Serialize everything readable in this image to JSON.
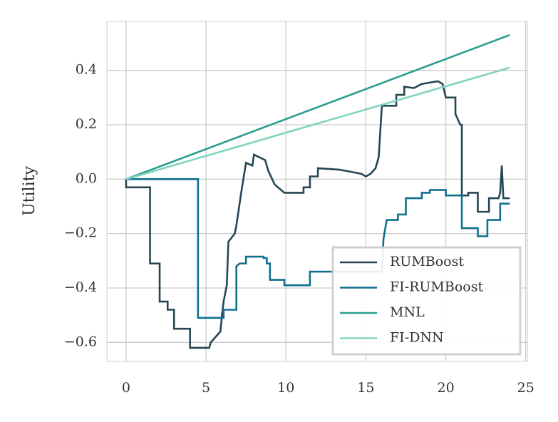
{
  "chart_data": {
    "type": "line",
    "y_label": "Utility",
    "xlim": [
      -1.2,
      25.1
    ],
    "ylim": [
      -0.67,
      0.58
    ],
    "xticks": [
      0,
      5,
      10,
      15,
      20,
      25
    ],
    "yticks": [
      {
        "value": -0.6,
        "label": "−0.6"
      },
      {
        "value": -0.4,
        "label": "−0.4"
      },
      {
        "value": -0.2,
        "label": "−0.2"
      },
      {
        "value": 0,
        "label": "0.0"
      },
      0.2,
      0.4
    ],
    "grid": true,
    "legend": "lower right",
    "series": [
      {
        "name": "RUMBoost",
        "color": "#264653",
        "x": [
          0,
          0,
          1.5,
          1.5,
          2.1,
          2.1,
          2.6,
          2.6,
          3.0,
          3.0,
          4.0,
          4.0,
          5.2,
          5.3,
          5.6,
          5.9,
          6.0,
          6.1,
          6.3,
          6.4,
          6.8,
          6.9,
          7.2,
          7.5,
          7.9,
          8.0,
          8.7,
          8.9,
          9.3,
          9.9,
          11.1,
          11.1,
          11.5,
          11.5,
          12.0,
          12.0,
          13.3,
          13.8,
          14.7,
          15.0,
          15.3,
          15.6,
          15.8,
          16.0,
          16.9,
          16.9,
          17.4,
          17.4,
          18.0,
          18.5,
          19.0,
          19.5,
          19.8,
          20.0,
          20.6,
          20.6,
          20.9,
          21.0,
          21.0,
          21.4,
          21.4,
          22.0,
          22.0,
          22.7,
          22.7,
          23.3,
          23.4,
          23.5,
          23.6,
          24.0
        ],
        "values": [
          0,
          -0.03,
          -0.03,
          -0.31,
          -0.31,
          -0.45,
          -0.45,
          -0.48,
          -0.48,
          -0.55,
          -0.55,
          -0.62,
          -0.62,
          -0.6,
          -0.58,
          -0.56,
          -0.5,
          -0.45,
          -0.39,
          -0.23,
          -0.2,
          -0.17,
          -0.05,
          0.06,
          0.05,
          0.09,
          0.07,
          0.03,
          -0.02,
          -0.05,
          -0.05,
          -0.03,
          -0.03,
          0.01,
          0.01,
          0.04,
          0.035,
          0.03,
          0.02,
          0.01,
          0.02,
          0.04,
          0.08,
          0.27,
          0.27,
          0.31,
          0.31,
          0.34,
          0.335,
          0.35,
          0.355,
          0.36,
          0.35,
          0.3,
          0.3,
          0.24,
          0.2,
          0.2,
          -0.06,
          -0.06,
          -0.05,
          -0.05,
          -0.12,
          -0.12,
          -0.07,
          -0.07,
          -0.05,
          0.05,
          -0.07,
          -0.07
        ]
      },
      {
        "name": "FI-RUMBoost",
        "color": "#10708f",
        "x": [
          0,
          4.5,
          4.5,
          6.1,
          6.1,
          6.9,
          6.9,
          7.1,
          7.5,
          7.5,
          8.6,
          8.6,
          8.8,
          8.8,
          9.0,
          9.0,
          9.9,
          9.9,
          11.5,
          11.5,
          16.0,
          16.1,
          16.3,
          17.0,
          17.0,
          17.5,
          17.5,
          18.5,
          18.5,
          19.0,
          19.0,
          20.0,
          20.0,
          21.0,
          21.0,
          22.0,
          22.0,
          22.6,
          22.6,
          23.4,
          23.4,
          24.0
        ],
        "values": [
          0,
          0,
          -0.51,
          -0.51,
          -0.48,
          -0.48,
          -0.32,
          -0.31,
          -0.31,
          -0.285,
          -0.285,
          -0.29,
          -0.29,
          -0.31,
          -0.31,
          -0.37,
          -0.37,
          -0.39,
          -0.39,
          -0.34,
          -0.34,
          -0.22,
          -0.15,
          -0.15,
          -0.13,
          -0.13,
          -0.07,
          -0.07,
          -0.05,
          -0.05,
          -0.04,
          -0.04,
          -0.06,
          -0.06,
          -0.18,
          -0.18,
          -0.21,
          -0.21,
          -0.15,
          -0.15,
          -0.09,
          -0.09
        ]
      },
      {
        "name": "MNL",
        "color": "#2a9d8f",
        "x": [
          0,
          24
        ],
        "values": [
          0,
          0.53
        ]
      },
      {
        "name": "FI-DNN",
        "color": "#80d4c0",
        "x": [
          0,
          24
        ],
        "values": [
          0,
          0.41
        ]
      }
    ]
  }
}
